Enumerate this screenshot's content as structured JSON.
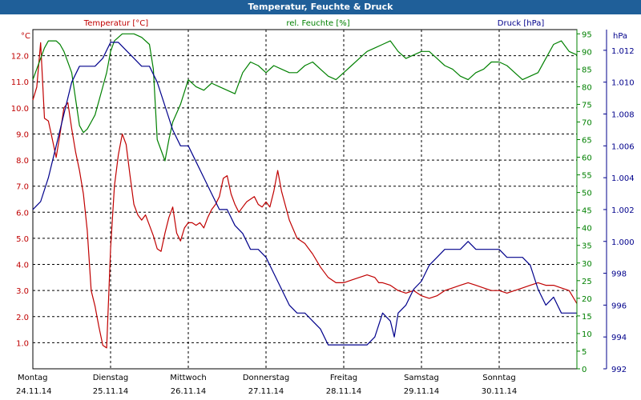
{
  "window": {
    "title": "Temperatur, Feuchte & Druck"
  },
  "colors": {
    "temperature": "#c00000",
    "humidity": "#008000",
    "pressure": "#00008b",
    "titlebar": "#1f5f99",
    "grid": "#000000"
  },
  "chart_data": {
    "type": "line",
    "title": "Temperatur, Feuchte & Druck",
    "grid": true,
    "x_range": [
      0,
      7
    ],
    "days": [
      {
        "name": "Montag",
        "date": "24.11.14"
      },
      {
        "name": "Dienstag",
        "date": "25.11.14"
      },
      {
        "name": "Mittwoch",
        "date": "26.11.14"
      },
      {
        "name": "Donnerstag",
        "date": "27.11.14"
      },
      {
        "name": "Freitag",
        "date": "28.11.14"
      },
      {
        "name": "Samstag",
        "date": "29.11.14"
      },
      {
        "name": "Sonntag",
        "date": "30.11.14"
      }
    ],
    "axes": {
      "temperature": {
        "label": "Temperatur [°C]",
        "unit": "°C",
        "ylim": [
          0,
          13
        ],
        "ticks": [
          "1.0",
          "2.0",
          "3.0",
          "4.0",
          "5.0",
          "6.0",
          "7.0",
          "8.0",
          "9.0",
          "10.0",
          "11.0",
          "12.0"
        ]
      },
      "humidity": {
        "label": "rel. Feuchte [%]",
        "unit": "%",
        "ylim": [
          0,
          96.2
        ],
        "ticks": [
          "0",
          "5",
          "10",
          "15",
          "20",
          "25",
          "30",
          "35",
          "40",
          "45",
          "50",
          "55",
          "60",
          "65",
          "70",
          "75",
          "80",
          "85",
          "90",
          "95"
        ]
      },
      "pressure": {
        "label": "Druck [hPa]",
        "unit": "hPa",
        "ylim": [
          992,
          1013.3
        ],
        "ticks": [
          "992",
          "994",
          "996",
          "998",
          "1.000",
          "1.002",
          "1.004",
          "1.006",
          "1.008",
          "1.010",
          "1.012"
        ]
      }
    },
    "series": [
      {
        "name": "Temperatur [°C]",
        "axis": "temperature",
        "x": [
          0,
          0.05,
          0.1,
          0.15,
          0.2,
          0.25,
          0.3,
          0.35,
          0.4,
          0.45,
          0.5,
          0.55,
          0.6,
          0.65,
          0.7,
          0.75,
          0.8,
          0.85,
          0.9,
          0.95,
          1.0,
          1.05,
          1.1,
          1.15,
          1.2,
          1.25,
          1.3,
          1.35,
          1.4,
          1.45,
          1.5,
          1.55,
          1.6,
          1.65,
          1.7,
          1.75,
          1.8,
          1.85,
          1.9,
          1.95,
          2.0,
          2.05,
          2.1,
          2.15,
          2.2,
          2.25,
          2.3,
          2.35,
          2.4,
          2.45,
          2.5,
          2.55,
          2.6,
          2.65,
          2.7,
          2.75,
          2.8,
          2.85,
          2.9,
          2.95,
          3.0,
          3.05,
          3.1,
          3.15,
          3.2,
          3.3,
          3.4,
          3.5,
          3.6,
          3.7,
          3.8,
          3.9,
          4.0,
          4.1,
          4.2,
          4.3,
          4.4,
          4.45,
          4.5,
          4.6,
          4.7,
          4.8,
          4.9,
          5.0,
          5.1,
          5.2,
          5.3,
          5.4,
          5.5,
          5.6,
          5.7,
          5.8,
          5.9,
          6.0,
          6.1,
          6.2,
          6.3,
          6.4,
          6.5,
          6.6,
          6.7,
          6.8,
          6.9,
          7.0
        ],
        "values": [
          10.3,
          10.8,
          12.5,
          9.6,
          9.5,
          8.8,
          8.1,
          9.0,
          10.0,
          10.2,
          9.2,
          8.3,
          7.6,
          6.7,
          5.3,
          3.0,
          2.4,
          1.6,
          0.9,
          0.8,
          4.6,
          7.0,
          8.2,
          9.0,
          8.6,
          7.4,
          6.3,
          5.9,
          5.7,
          5.9,
          5.5,
          5.1,
          4.6,
          4.5,
          5.2,
          5.8,
          6.2,
          5.2,
          4.9,
          5.4,
          5.6,
          5.6,
          5.5,
          5.6,
          5.4,
          5.8,
          6.1,
          6.3,
          6.6,
          7.3,
          7.4,
          6.7,
          6.3,
          6.0,
          6.2,
          6.4,
          6.5,
          6.6,
          6.3,
          6.2,
          6.4,
          6.2,
          6.8,
          7.6,
          6.8,
          5.7,
          5.0,
          4.8,
          4.4,
          3.9,
          3.5,
          3.3,
          3.3,
          3.4,
          3.5,
          3.6,
          3.5,
          3.3,
          3.3,
          3.2,
          3.0,
          2.9,
          3.0,
          2.8,
          2.7,
          2.8,
          3.0,
          3.1,
          3.2,
          3.3,
          3.2,
          3.1,
          3.0,
          3.0,
          2.9,
          3.0,
          3.1,
          3.2,
          3.3,
          3.2,
          3.2,
          3.1,
          3.0,
          2.5
        ]
      },
      {
        "name": "rel. Feuchte [%]",
        "axis": "humidity",
        "x": [
          0,
          0.1,
          0.15,
          0.2,
          0.3,
          0.35,
          0.4,
          0.5,
          0.6,
          0.65,
          0.7,
          0.75,
          0.8,
          0.85,
          0.9,
          0.95,
          1.0,
          1.05,
          1.1,
          1.15,
          1.2,
          1.3,
          1.4,
          1.5,
          1.55,
          1.6,
          1.7,
          1.75,
          1.8,
          1.9,
          2.0,
          2.1,
          2.2,
          2.3,
          2.4,
          2.5,
          2.6,
          2.7,
          2.8,
          2.9,
          3.0,
          3.1,
          3.2,
          3.3,
          3.4,
          3.5,
          3.6,
          3.7,
          3.8,
          3.9,
          4.0,
          4.1,
          4.2,
          4.3,
          4.4,
          4.5,
          4.6,
          4.7,
          4.8,
          4.9,
          5.0,
          5.1,
          5.2,
          5.3,
          5.4,
          5.5,
          5.6,
          5.7,
          5.8,
          5.9,
          6.0,
          6.1,
          6.2,
          6.3,
          6.4,
          6.5,
          6.6,
          6.7,
          6.8,
          6.9,
          7.0
        ],
        "values": [
          82,
          88,
          91,
          93,
          93,
          92,
          90,
          84,
          69,
          67,
          68,
          70,
          72,
          76,
          80,
          84,
          90,
          93,
          94,
          95,
          95,
          95,
          94,
          92,
          85,
          65,
          59,
          65,
          70,
          75,
          82,
          80,
          79,
          81,
          80,
          79,
          78,
          84,
          87,
          86,
          84,
          86,
          85,
          84,
          84,
          86,
          87,
          85,
          83,
          82,
          84,
          86,
          88,
          90,
          91,
          92,
          93,
          90,
          88,
          89,
          90,
          90,
          88,
          86,
          85,
          83,
          82,
          84,
          85,
          87,
          87,
          86,
          84,
          82,
          83,
          84,
          88,
          92,
          93,
          90,
          89
        ]
      },
      {
        "name": "Druck [hPa]",
        "axis": "pressure",
        "x": [
          0,
          0.1,
          0.2,
          0.3,
          0.4,
          0.5,
          0.6,
          0.8,
          0.9,
          1.0,
          1.1,
          1.2,
          1.3,
          1.4,
          1.5,
          1.6,
          1.7,
          1.8,
          1.9,
          2.0,
          2.1,
          2.2,
          2.3,
          2.4,
          2.5,
          2.6,
          2.7,
          2.8,
          2.9,
          3.0,
          3.1,
          3.2,
          3.3,
          3.4,
          3.5,
          3.6,
          3.7,
          3.8,
          3.9,
          4.0,
          4.1,
          4.2,
          4.3,
          4.4,
          4.5,
          4.6,
          4.65,
          4.7,
          4.8,
          4.9,
          5.0,
          5.1,
          5.2,
          5.3,
          5.4,
          5.5,
          5.6,
          5.7,
          5.8,
          5.9,
          6.0,
          6.1,
          6.2,
          6.3,
          6.4,
          6.5,
          6.6,
          6.7,
          6.8,
          6.9,
          7.0
        ],
        "values": [
          1002.0,
          1002.5,
          1004.0,
          1006.0,
          1008.0,
          1010.0,
          1011.0,
          1011.0,
          1011.5,
          1012.5,
          1012.5,
          1012.0,
          1011.5,
          1011.0,
          1011.0,
          1010.0,
          1008.5,
          1007.0,
          1006.0,
          1006.0,
          1005.0,
          1004.0,
          1003.0,
          1002.0,
          1002.0,
          1001.0,
          1000.5,
          999.5,
          999.5,
          999.0,
          998.0,
          997.0,
          996.0,
          995.5,
          995.5,
          995.0,
          994.5,
          993.5,
          993.5,
          993.5,
          993.5,
          993.5,
          993.5,
          994.0,
          995.5,
          995.0,
          994.0,
          995.5,
          996.0,
          997.0,
          997.5,
          998.5,
          999.0,
          999.5,
          999.5,
          999.5,
          1000.0,
          999.5,
          999.5,
          999.5,
          999.5,
          999.0,
          999.0,
          999.0,
          998.5,
          997.0,
          996.0,
          996.5,
          995.5,
          995.5,
          995.5
        ]
      }
    ]
  }
}
